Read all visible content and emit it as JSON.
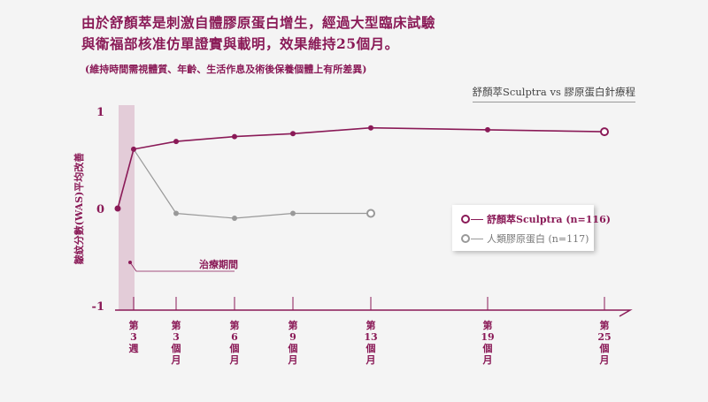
{
  "heading": {
    "line1": "由於舒顏萃是刺激自體膠原蛋白增生，經過大型臨床試驗",
    "line2": "與衛福部核准仿單證實與載明，效果維持25個月。"
  },
  "note": "(維持時間需視體質、年齡、生活作息及術後保養個體上有所差異)",
  "comparison_label": "舒顏萃Sculptra vs 膠原蛋白針療程",
  "treatment_period_label": "治療期間",
  "colors": {
    "sculptra": "#8a1a57",
    "collagen": "#999999",
    "band": "#e3ccd8",
    "axis": "#8a1a57"
  },
  "chart_data": {
    "type": "line",
    "title": "",
    "ylabel": "皺紋分數(WAS)平均改善",
    "ylim": [
      -1,
      1
    ],
    "yticks": [
      "1",
      "0",
      "-1"
    ],
    "x_positions": [
      0,
      1,
      2,
      3,
      4,
      5,
      6,
      7
    ],
    "x_tick_labels": [
      "",
      "第3週",
      "第3個月",
      "第6個月",
      "第9個月",
      "第13個月",
      "第19個月",
      "第25個月"
    ],
    "series": [
      {
        "name": "舒顏萃Sculptra (n=116)",
        "x": [
          0,
          1,
          2,
          3,
          4,
          5,
          6,
          7
        ],
        "values": [
          0,
          0.61,
          0.69,
          0.74,
          0.77,
          0.83,
          0.81,
          0.79
        ]
      },
      {
        "name": "人類膠原蛋白 (n=117)",
        "x": [
          1,
          2,
          3,
          4,
          5
        ],
        "values": [
          0.61,
          -0.05,
          -0.1,
          -0.05,
          -0.05
        ]
      }
    ],
    "legend": [
      "舒顏萃Sculptra (n=116)",
      "人類膠原蛋白 (n=117)"
    ]
  }
}
